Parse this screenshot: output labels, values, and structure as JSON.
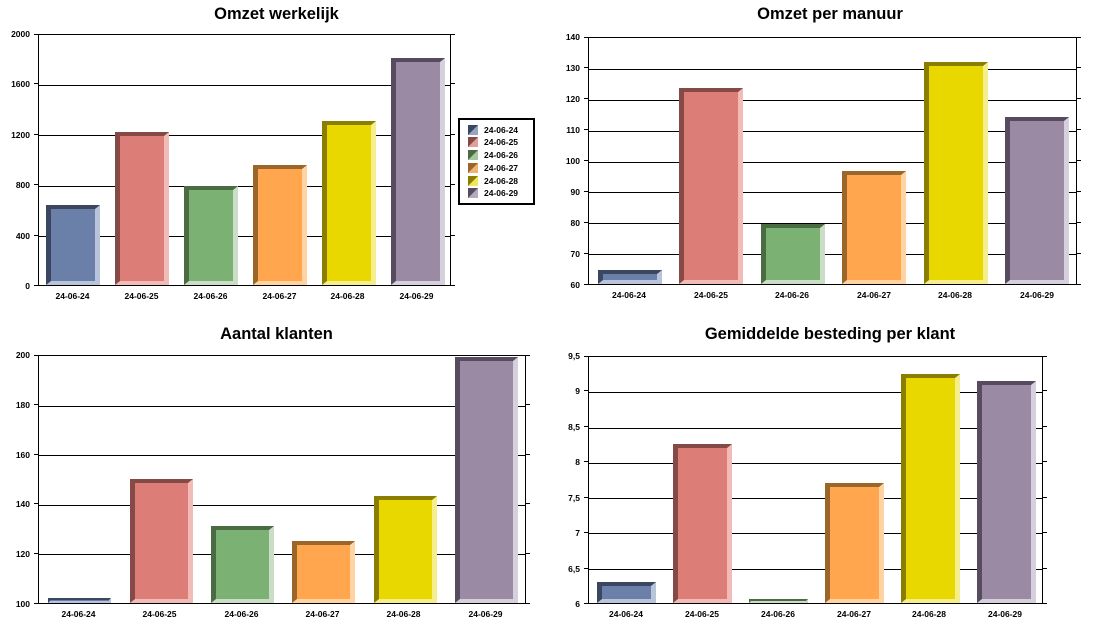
{
  "legend": {
    "items": [
      "24-06-24",
      "24-06-25",
      "24-06-26",
      "24-06-27",
      "24-06-28",
      "24-06-29"
    ]
  },
  "series_colors": [
    {
      "name": "24-06-24",
      "dark": "#3B4760",
      "fill": "#6A80A8",
      "light": "#B9C4DB",
      "swatch_light": "#94A6C0"
    },
    {
      "name": "24-06-25",
      "dark": "#854A45",
      "fill": "#DC7D77",
      "light": "#F1BCB7",
      "swatch_light": "#E2A09B"
    },
    {
      "name": "24-06-26",
      "dark": "#4B6B43",
      "fill": "#7CB174",
      "light": "#CBDDC6",
      "swatch_light": "#A6C79F"
    },
    {
      "name": "24-06-27",
      "dark": "#9A662A",
      "fill": "#FFA64E",
      "light": "#FFD4A2",
      "swatch_light": "#EFB470"
    },
    {
      "name": "24-06-28",
      "dark": "#8A7D00",
      "fill": "#E8D800",
      "light": "#F5EE8E",
      "swatch_light": "#EDE75D"
    },
    {
      "name": "24-06-29",
      "dark": "#574B60",
      "fill": "#9A8AA4",
      "light": "#D6CFDC",
      "swatch_light": "#B4AABE"
    }
  ],
  "chart_data": [
    {
      "type": "bar",
      "title": "Omzet werkelijk",
      "categories": [
        "24-06-24",
        "24-06-25",
        "24-06-26",
        "24-06-27",
        "24-06-28",
        "24-06-29"
      ],
      "values": [
        635,
        1220,
        790,
        955,
        1310,
        1810
      ],
      "ylim": [
        0,
        2000
      ],
      "yticks": [
        {
          "value": 0,
          "label": "0"
        },
        {
          "value": 400,
          "label": "400"
        },
        {
          "value": 800,
          "label": "800"
        },
        {
          "value": 1200,
          "label": "1200"
        },
        {
          "value": 1600,
          "label": "1600"
        },
        {
          "value": 2000,
          "label": "2000"
        }
      ],
      "grid": true,
      "legend_position": "right"
    },
    {
      "type": "bar",
      "title": "Omzet per manuur",
      "categories": [
        "24-06-24",
        "24-06-25",
        "24-06-26",
        "24-06-27",
        "24-06-28",
        "24-06-29"
      ],
      "values": [
        64.5,
        123.5,
        79.5,
        96.5,
        132,
        114
      ],
      "ylim": [
        60,
        140
      ],
      "yticks": [
        {
          "value": 60,
          "label": "60"
        },
        {
          "value": 70,
          "label": "70"
        },
        {
          "value": 80,
          "label": "80"
        },
        {
          "value": 90,
          "label": "90"
        },
        {
          "value": 100,
          "label": "100"
        },
        {
          "value": 110,
          "label": "110"
        },
        {
          "value": 120,
          "label": "120"
        },
        {
          "value": 130,
          "label": "130"
        },
        {
          "value": 140,
          "label": "140"
        }
      ],
      "grid": true,
      "legend_position": "none"
    },
    {
      "type": "bar",
      "title": "Aantal klanten",
      "categories": [
        "24-06-24",
        "24-06-25",
        "24-06-26",
        "24-06-27",
        "24-06-28",
        "24-06-29"
      ],
      "values": [
        102,
        150,
        131,
        125,
        143,
        199
      ],
      "ylim": [
        100,
        200
      ],
      "yticks": [
        {
          "value": 100,
          "label": "100"
        },
        {
          "value": 120,
          "label": "120"
        },
        {
          "value": 140,
          "label": "140"
        },
        {
          "value": 160,
          "label": "160"
        },
        {
          "value": 180,
          "label": "180"
        },
        {
          "value": 200,
          "label": "200"
        }
      ],
      "grid": true,
      "legend_position": "none"
    },
    {
      "type": "bar",
      "title": "Gemiddelde besteding per klant",
      "categories": [
        "24-06-24",
        "24-06-25",
        "24-06-26",
        "24-06-27",
        "24-06-28",
        "24-06-29"
      ],
      "values": [
        6.3,
        8.25,
        6.05,
        7.7,
        9.25,
        9.15
      ],
      "ylim": [
        6,
        9.5
      ],
      "yticks": [
        {
          "value": 6,
          "label": "6"
        },
        {
          "value": 6.5,
          "label": "6,5"
        },
        {
          "value": 7,
          "label": "7"
        },
        {
          "value": 7.5,
          "label": "7,5"
        },
        {
          "value": 8,
          "label": "8"
        },
        {
          "value": 8.5,
          "label": "8,5"
        },
        {
          "value": 9,
          "label": "9"
        },
        {
          "value": 9.5,
          "label": "9,5"
        }
      ],
      "grid": true,
      "legend_position": "none"
    }
  ]
}
